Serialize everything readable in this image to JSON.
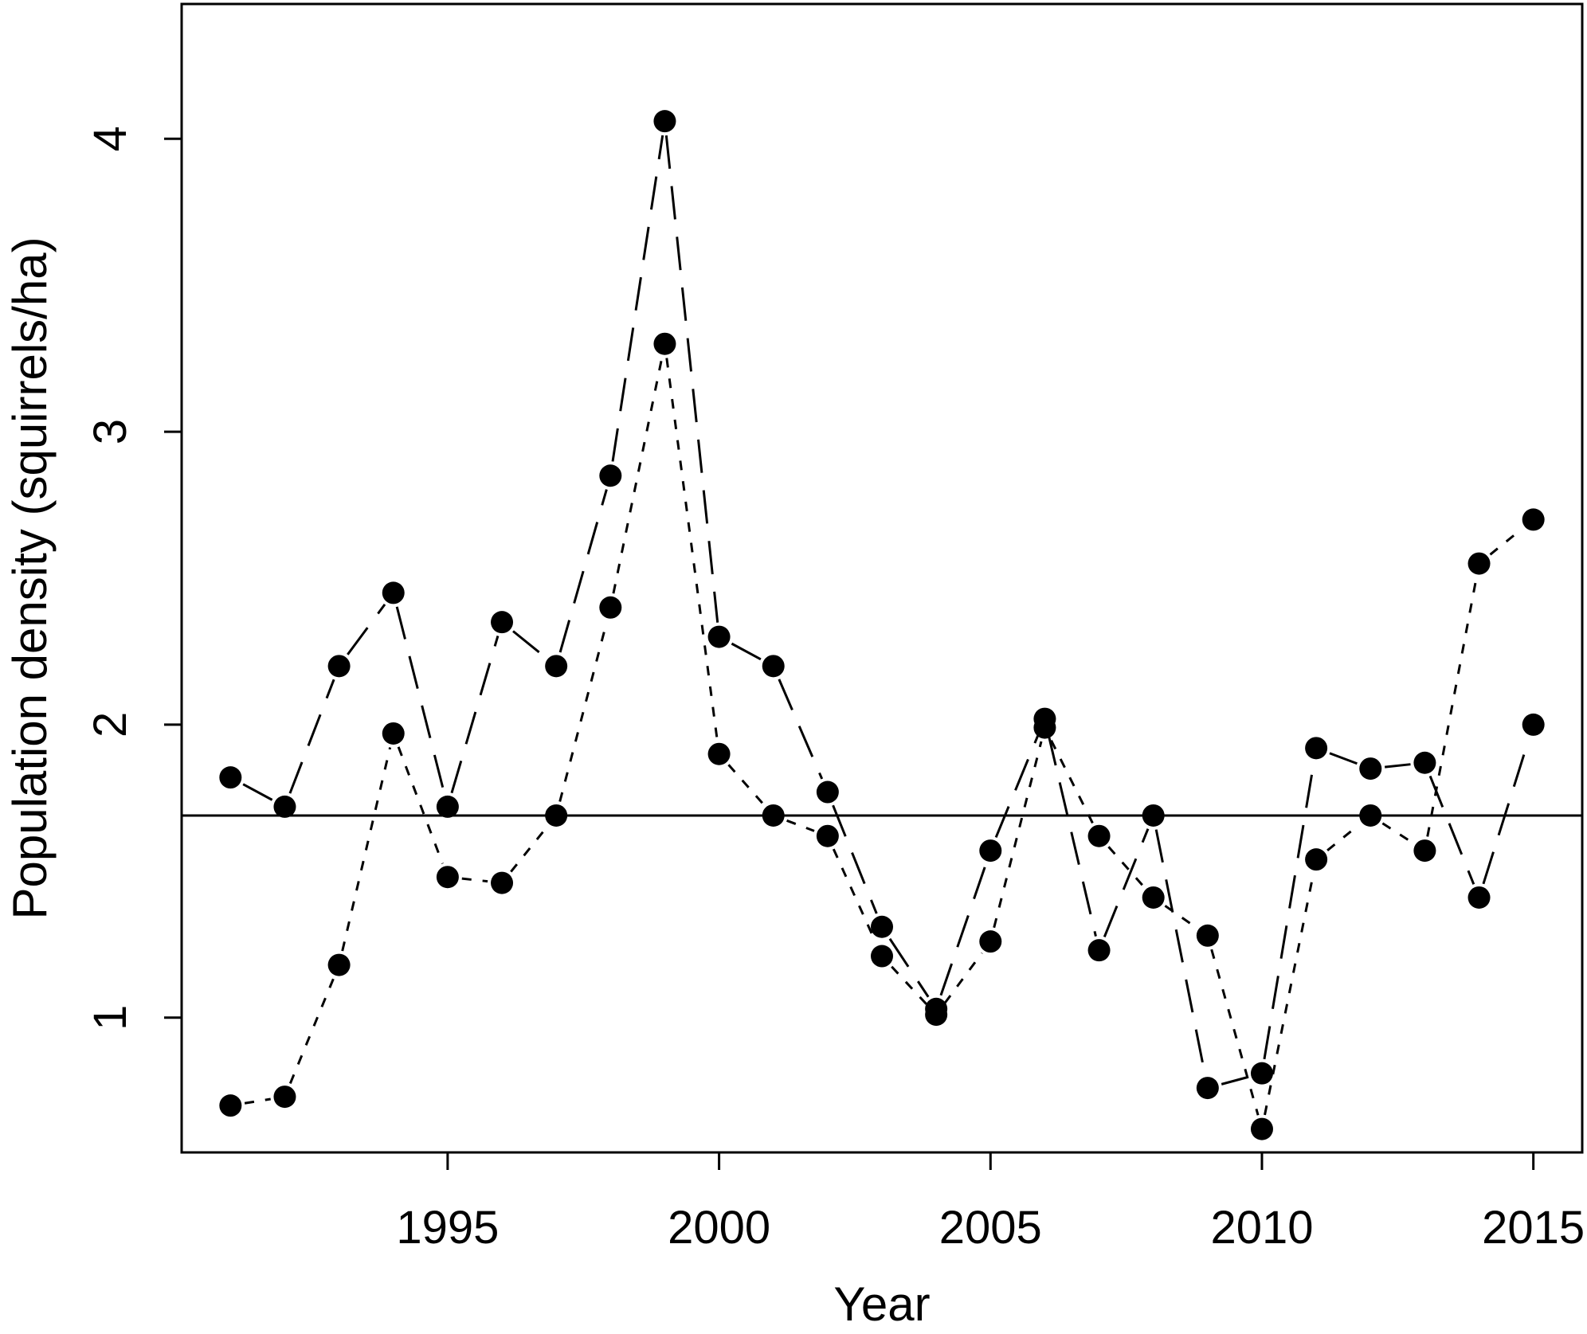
{
  "chart_data": {
    "type": "line",
    "title": "",
    "xlabel": "Year",
    "ylabel": "Population density (squirrels/ha)",
    "xlim": [
      1990.1,
      2015.9
    ],
    "ylim": [
      0.54,
      4.46
    ],
    "xticks": [
      1995,
      2000,
      2005,
      2010,
      2015
    ],
    "yticks": [
      1,
      2,
      3,
      4
    ],
    "grid": false,
    "legend": "none",
    "x": [
      1991,
      1992,
      1993,
      1994,
      1995,
      1996,
      1997,
      1998,
      1999,
      2000,
      2001,
      2002,
      2003,
      2004,
      2005,
      2006,
      2007,
      2008,
      2009,
      2010,
      2011,
      2012,
      2013,
      2014,
      2015
    ],
    "series": [
      {
        "line_style": "long-dash",
        "marker": "filled-circle",
        "color": "#000000",
        "values": [
          1.82,
          1.72,
          2.2,
          2.45,
          1.72,
          2.35,
          2.2,
          2.85,
          4.06,
          2.3,
          2.2,
          1.77,
          1.31,
          1.03,
          1.57,
          2.02,
          1.23,
          1.69,
          0.76,
          0.81,
          1.92,
          1.85,
          1.87,
          1.41,
          2.0
        ]
      },
      {
        "line_style": "short-dash",
        "marker": "filled-circle",
        "color": "#000000",
        "values": [
          0.7,
          0.73,
          1.18,
          1.97,
          1.48,
          1.46,
          1.69,
          2.4,
          3.3,
          1.9,
          1.69,
          1.62,
          1.21,
          1.01,
          1.26,
          1.99,
          1.62,
          1.41,
          1.28,
          0.62,
          1.54,
          1.69,
          1.57,
          2.55,
          2.7
        ]
      }
    ],
    "reference_line": {
      "y": 1.69,
      "line_style": "solid",
      "color": "#000000"
    }
  }
}
